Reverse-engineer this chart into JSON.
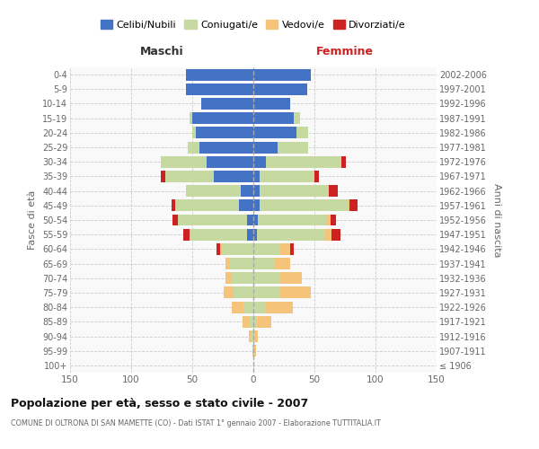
{
  "age_groups": [
    "100+",
    "95-99",
    "90-94",
    "85-89",
    "80-84",
    "75-79",
    "70-74",
    "65-69",
    "60-64",
    "55-59",
    "50-54",
    "45-49",
    "40-44",
    "35-39",
    "30-34",
    "25-29",
    "20-24",
    "15-19",
    "10-14",
    "5-9",
    "0-4"
  ],
  "birth_years": [
    "≤ 1906",
    "1907-1911",
    "1912-1916",
    "1917-1921",
    "1922-1926",
    "1927-1931",
    "1932-1936",
    "1937-1941",
    "1942-1946",
    "1947-1951",
    "1952-1956",
    "1957-1961",
    "1962-1966",
    "1967-1971",
    "1972-1976",
    "1977-1981",
    "1982-1986",
    "1987-1991",
    "1992-1996",
    "1997-2001",
    "2002-2006"
  ],
  "male_celibi": [
    0,
    0,
    0,
    0,
    0,
    0,
    0,
    0,
    0,
    5,
    5,
    12,
    10,
    32,
    38,
    44,
    47,
    50,
    43,
    55,
    55
  ],
  "male_coniugati": [
    0,
    0,
    2,
    4,
    8,
    16,
    18,
    20,
    26,
    47,
    57,
    52,
    45,
    40,
    38,
    10,
    3,
    2,
    0,
    0,
    0
  ],
  "male_vedovi": [
    0,
    1,
    2,
    5,
    10,
    8,
    5,
    3,
    1,
    0,
    0,
    0,
    0,
    0,
    0,
    0,
    0,
    0,
    0,
    0,
    0
  ],
  "male_divorziati": [
    0,
    0,
    0,
    0,
    0,
    0,
    0,
    0,
    3,
    5,
    4,
    3,
    0,
    4,
    0,
    0,
    0,
    0,
    0,
    0,
    0
  ],
  "female_nubili": [
    0,
    0,
    0,
    0,
    0,
    0,
    0,
    0,
    0,
    3,
    4,
    5,
    5,
    5,
    10,
    20,
    35,
    33,
    30,
    44,
    47
  ],
  "female_coniugate": [
    0,
    0,
    1,
    3,
    10,
    22,
    22,
    18,
    22,
    55,
    56,
    72,
    57,
    45,
    62,
    25,
    10,
    5,
    0,
    0,
    0
  ],
  "female_vedove": [
    0,
    2,
    3,
    12,
    22,
    25,
    18,
    12,
    8,
    6,
    3,
    2,
    0,
    0,
    0,
    0,
    0,
    0,
    0,
    0,
    0
  ],
  "female_divorziate": [
    0,
    0,
    0,
    0,
    0,
    0,
    0,
    0,
    3,
    7,
    5,
    6,
    7,
    4,
    4,
    0,
    0,
    0,
    0,
    0,
    0
  ],
  "color_celibi": "#4472c4",
  "color_coniugati": "#c5d9a0",
  "color_vedovi": "#f5c47a",
  "color_divorziati": "#cc2222",
  "title": "Popolazione per età, sesso e stato civile - 2007",
  "subtitle": "COMUNE DI OLTRONA DI SAN MAMETTE (CO) - Dati ISTAT 1° gennaio 2007 - Elaborazione TUTTITALIA.IT",
  "label_maschi": "Maschi",
  "label_femmine": "Femmine",
  "label_fasce": "Fasce di età",
  "label_anni": "Anni di nascita",
  "legend_labels": [
    "Celibi/Nubili",
    "Coniugati/e",
    "Vedovi/e",
    "Divorziati/e"
  ],
  "xlim": 150,
  "bg_color": "#ffffff",
  "plot_bg": "#f9f9f9",
  "grid_color": "#cccccc"
}
